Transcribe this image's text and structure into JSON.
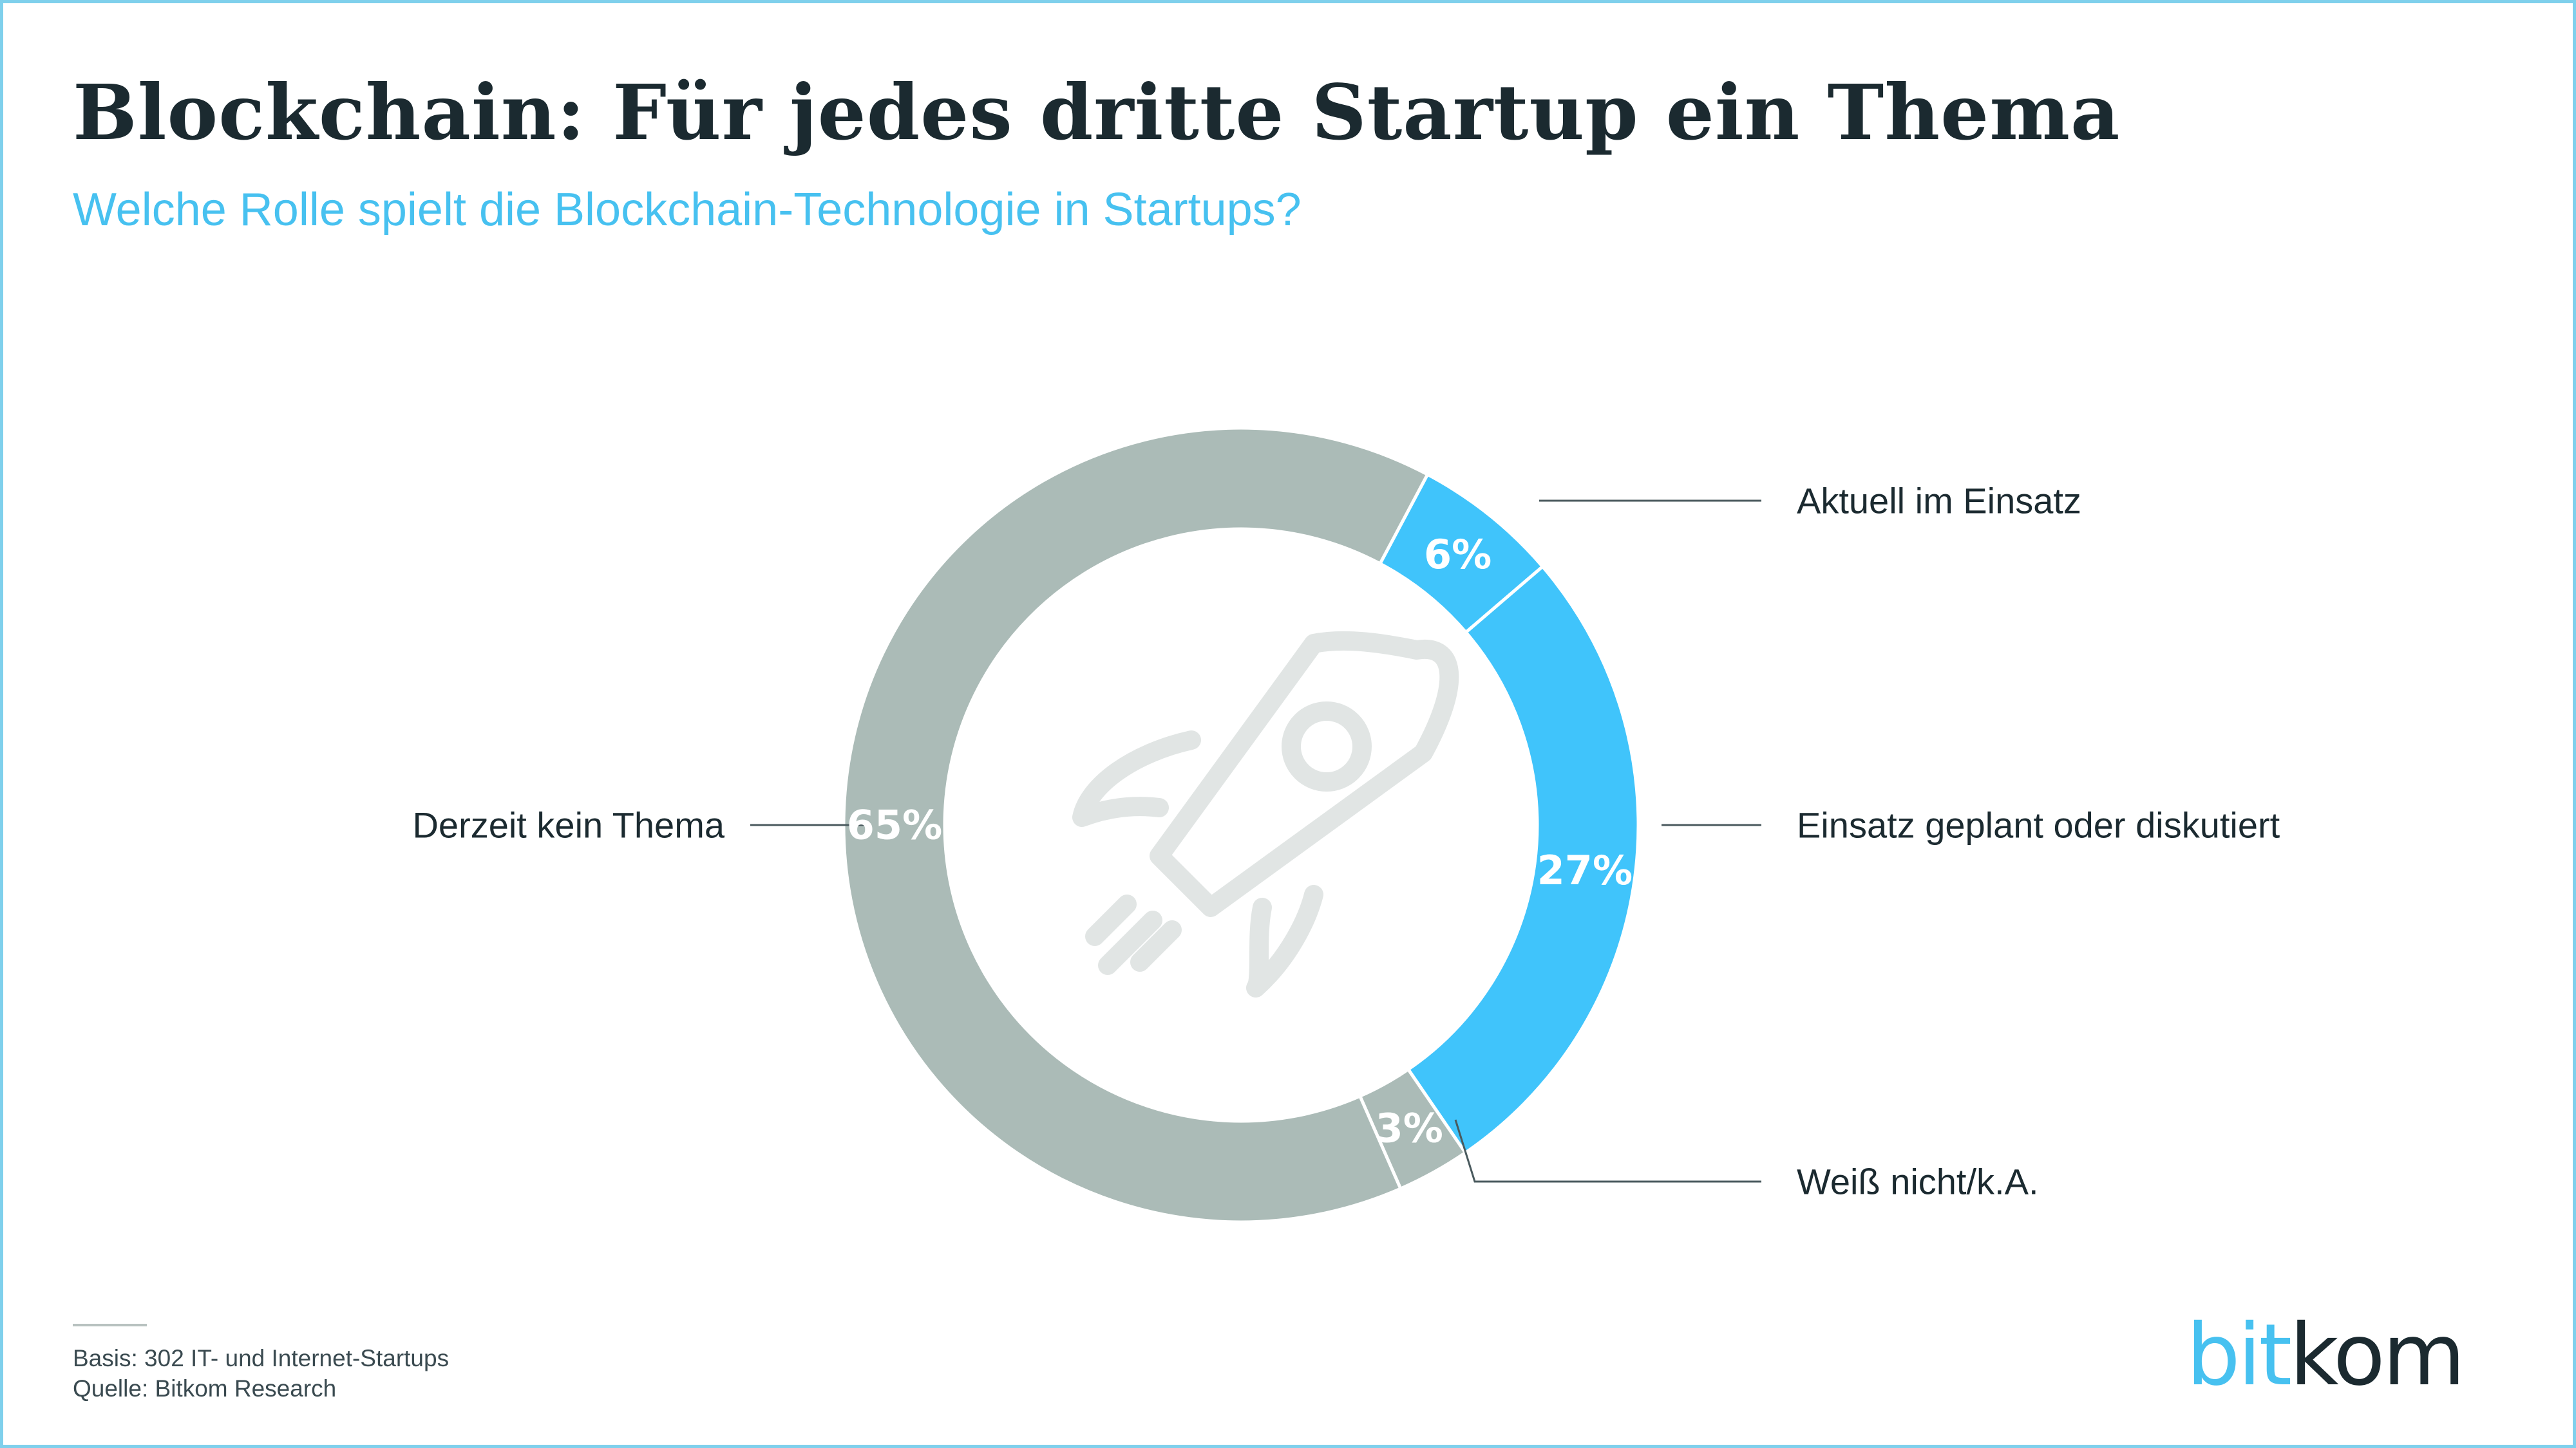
{
  "title": "Blockchain: Für jedes dritte Startup ein Thema",
  "subtitle": "Welche Rolle spielt die Blockchain-Technologie in Startups?",
  "chart_data": {
    "type": "pie",
    "variant": "donut",
    "slices": [
      {
        "label": "Aktuell im Einsatz",
        "value": 6,
        "display": "6%",
        "color": "#40c4fb"
      },
      {
        "label": "Einsatz geplant oder diskutiert",
        "value": 27,
        "display": "27%",
        "color": "#40c4fb"
      },
      {
        "label": "Weiß nicht/k.A.",
        "value": 3,
        "display": "3%",
        "color": "#abbbb7"
      },
      {
        "label": "Derzeit kein Thema",
        "value": 65,
        "display": "65%",
        "color": "#abbbb7"
      }
    ],
    "center_icon": "rocket-icon"
  },
  "footer": {
    "basis": "Basis: 302 IT- und Internet-Startups",
    "source": "Quelle: Bitkom Research"
  },
  "logo": {
    "part1": "bit",
    "part2": "kom"
  },
  "colors": {
    "accent": "#47c1f0",
    "dark": "#1b2a30",
    "gray": "#abbbb7",
    "border": "#7fd0ec"
  }
}
